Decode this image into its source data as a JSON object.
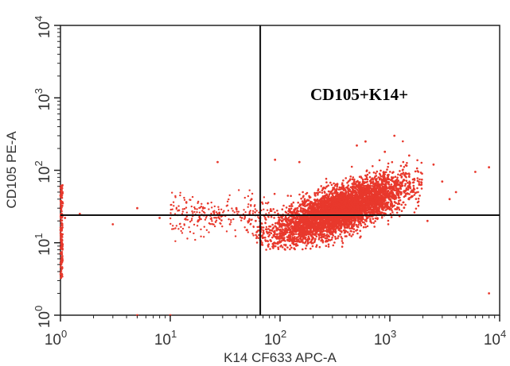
{
  "chart_data": {
    "type": "scatter",
    "title": "",
    "xlabel": "K14 CF633 APC-A",
    "ylabel": "CD105 PE-A",
    "x_scale": "log",
    "y_scale": "log",
    "xlim": [
      1,
      10000
    ],
    "ylim": [
      1,
      10000
    ],
    "x_ticks": [
      {
        "base": "10",
        "exp": "0"
      },
      {
        "base": "10",
        "exp": "1"
      },
      {
        "base": "10",
        "exp": "2"
      },
      {
        "base": "10",
        "exp": "3"
      },
      {
        "base": "10",
        "exp": "4"
      }
    ],
    "y_ticks": [
      {
        "base": "10",
        "exp": "0"
      },
      {
        "base": "10",
        "exp": "1"
      },
      {
        "base": "10",
        "exp": "2"
      },
      {
        "base": "10",
        "exp": "3"
      },
      {
        "base": "10",
        "exp": "4"
      }
    ],
    "gates": {
      "x": 66,
      "y": 24
    },
    "annotation": "CD105+K14+",
    "grid": false,
    "point_color": "#e8382c",
    "main_population": {
      "x_center": 350,
      "y_center": 28,
      "x_range": [
        60,
        2000
      ],
      "y_range": [
        8,
        300
      ]
    },
    "points": [
      {
        "x": 1,
        "y": 60
      },
      {
        "x": 1,
        "y": 45
      },
      {
        "x": 1,
        "y": 30
      },
      {
        "x": 1,
        "y": 20
      },
      {
        "x": 1,
        "y": 15
      },
      {
        "x": 1,
        "y": 10
      },
      {
        "x": 1,
        "y": 7
      },
      {
        "x": 1,
        "y": 4
      },
      {
        "x": 1.1,
        "y": 22
      },
      {
        "x": 1.05,
        "y": 35
      },
      {
        "x": 1.5,
        "y": 25
      },
      {
        "x": 3,
        "y": 18
      },
      {
        "x": 5,
        "y": 30
      },
      {
        "x": 8,
        "y": 22
      },
      {
        "x": 12,
        "y": 28
      },
      {
        "x": 18,
        "y": 20
      },
      {
        "x": 22,
        "y": 35
      },
      {
        "x": 28,
        "y": 26
      },
      {
        "x": 35,
        "y": 18
      },
      {
        "x": 40,
        "y": 30
      },
      {
        "x": 45,
        "y": 22
      },
      {
        "x": 50,
        "y": 15
      },
      {
        "x": 55,
        "y": 40
      },
      {
        "x": 60,
        "y": 20
      },
      {
        "x": 27,
        "y": 130
      },
      {
        "x": 90,
        "y": 140
      },
      {
        "x": 150,
        "y": 130
      },
      {
        "x": 500,
        "y": 220
      },
      {
        "x": 600,
        "y": 250
      },
      {
        "x": 900,
        "y": 180
      },
      {
        "x": 1100,
        "y": 300
      },
      {
        "x": 1500,
        "y": 160
      },
      {
        "x": 2500,
        "y": 120
      },
      {
        "x": 3000,
        "y": 70
      },
      {
        "x": 4000,
        "y": 50
      },
      {
        "x": 6000,
        "y": 95
      },
      {
        "x": 8000,
        "y": 110
      },
      {
        "x": 3500,
        "y": 40
      },
      {
        "x": 2200,
        "y": 20
      },
      {
        "x": 8000,
        "y": 2
      },
      {
        "x": 5,
        "y": 1
      },
      {
        "x": 10,
        "y": 1
      }
    ]
  }
}
